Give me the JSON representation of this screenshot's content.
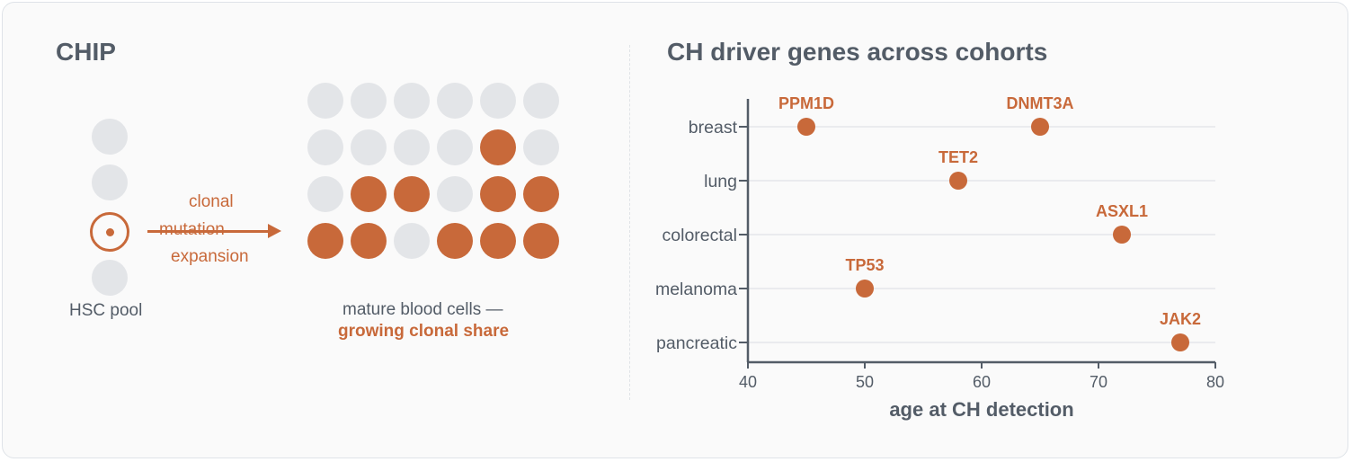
{
  "left_panel": {
    "title": "CHIP",
    "hsc_label": "HSC pool",
    "arrow_label_top": "clonal",
    "arrow_label_middle": "mutation",
    "arrow_label_bottom": "expansion",
    "caption_line1": "mature blood cells —",
    "caption_line2": "growing clonal share",
    "colors": {
      "accent": "#c8693a",
      "neutral": "#e3e5e8"
    },
    "blood_cell_grid": [
      [
        "grey",
        "grey",
        "grey",
        "grey",
        "grey",
        "grey"
      ],
      [
        "grey",
        "grey",
        "grey",
        "grey",
        "orange",
        "grey"
      ],
      [
        "grey",
        "orange",
        "orange",
        "grey",
        "orange",
        "orange"
      ],
      [
        "orange",
        "orange",
        "grey",
        "orange",
        "orange",
        "orange"
      ]
    ],
    "hsc_pool": [
      "grey",
      "grey",
      "mutated",
      "grey"
    ]
  },
  "right_panel": {
    "title": "CH driver genes across cohorts"
  },
  "chart_data": {
    "type": "scatter",
    "title": "CH driver genes across cohorts",
    "xlabel": "age at CH detection",
    "ylabel": "",
    "xlim": [
      40,
      80
    ],
    "xticks": [
      40,
      50,
      60,
      70,
      80
    ],
    "categories": [
      "breast",
      "lung",
      "colorectal",
      "melanoma",
      "pancreatic"
    ],
    "grid": "horizontal",
    "points": [
      {
        "category": "breast",
        "x": 45,
        "label": "PPM1D"
      },
      {
        "category": "breast",
        "x": 65,
        "label": "DNMT3A"
      },
      {
        "category": "lung",
        "x": 58,
        "label": "TET2"
      },
      {
        "category": "colorectal",
        "x": 72,
        "label": "ASXL1"
      },
      {
        "category": "melanoma",
        "x": 50,
        "label": "TP53"
      },
      {
        "category": "pancreatic",
        "x": 77,
        "label": "JAK2"
      }
    ],
    "colors": {
      "point": "#c8693a",
      "axis": "#535c67",
      "grid": "#e4e6e9"
    }
  }
}
